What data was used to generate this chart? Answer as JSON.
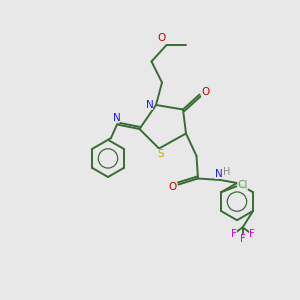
{
  "bg_color": "#e8e8e8",
  "bond_color": "#3a6b35",
  "N_color": "#1a1aff",
  "O_color": "#cc0000",
  "S_color": "#ccaa00",
  "F_color": "#dd00dd",
  "Cl_color": "#5aaa5a",
  "H_color": "#888888",
  "lw": 1.4,
  "fs": 7.5,
  "xlim": [
    0,
    10
  ],
  "ylim": [
    0,
    10
  ]
}
